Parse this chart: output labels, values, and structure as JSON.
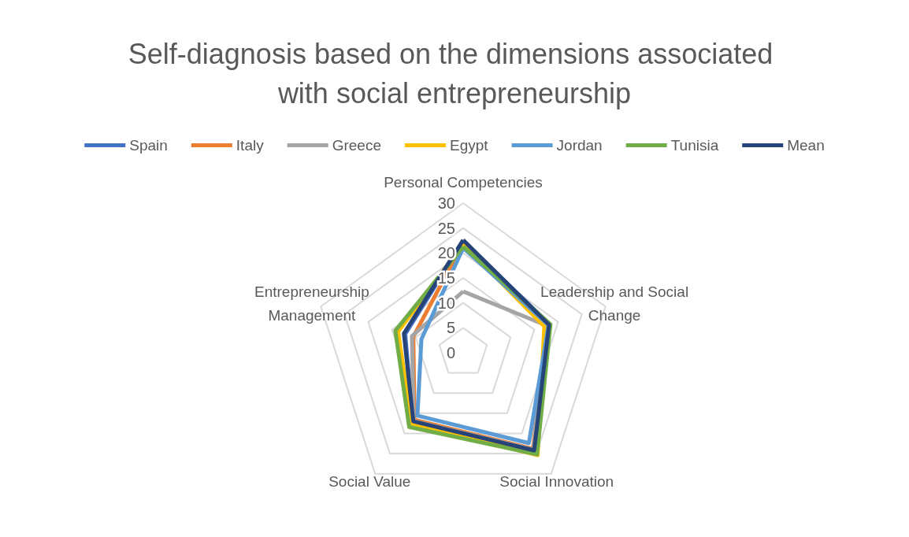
{
  "chart_data": {
    "type": "radar",
    "title": "Self-diagnosis based on the dimensions associated with social entrepreneurship",
    "categories": [
      "Personal Competencies",
      "Leadership and Social Change",
      "Social Innovation",
      "Social Value",
      "Entrepreneurship Management"
    ],
    "series": [
      {
        "name": "Spain",
        "color": "#4472c4",
        "values": [
          22.4,
          18.3,
          24.4,
          17.2,
          12.2
        ]
      },
      {
        "name": "Italy",
        "color": "#ed7d31",
        "values": [
          22.0,
          17.8,
          23.8,
          16.6,
          10.5
        ]
      },
      {
        "name": "Greece",
        "color": "#a5a5a5",
        "values": [
          12.3,
          17.6,
          24.0,
          16.9,
          10.8
        ]
      },
      {
        "name": "Egypt",
        "color": "#ffc000",
        "values": [
          21.8,
          17.1,
          25.4,
          17.6,
          13.7
        ]
      },
      {
        "name": "Jordan",
        "color": "#5b9bd5",
        "values": [
          21.0,
          18.0,
          22.4,
          15.6,
          8.8
        ]
      },
      {
        "name": "Tunisia",
        "color": "#70ad47",
        "values": [
          21.3,
          18.4,
          25.2,
          18.4,
          14.3
        ]
      },
      {
        "name": "Mean",
        "color": "#264478",
        "values": [
          22.6,
          18.1,
          24.2,
          17.0,
          12.5
        ]
      }
    ],
    "ylim": [
      0,
      30
    ],
    "yticks": [
      0,
      5,
      10,
      15,
      20,
      25,
      30
    ],
    "legend": "top",
    "marker": "none",
    "line_style": "solid"
  }
}
